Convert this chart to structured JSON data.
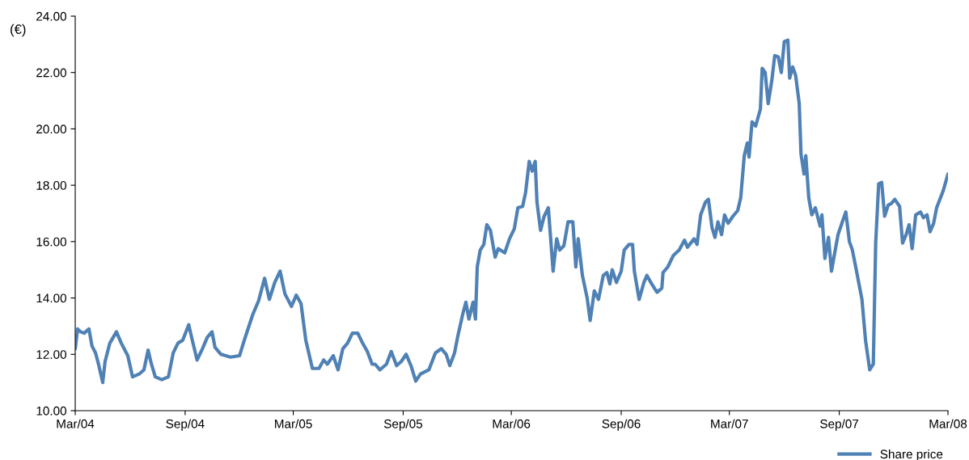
{
  "chart_data": {
    "type": "line",
    "ylabel": "(€)",
    "legend": "bottom right",
    "grid": false,
    "marker": "none",
    "line_style": "solid",
    "xlim": [
      "2004-03-01",
      "2008-03-01"
    ],
    "xticks": [
      {
        "value": "2004-03-01",
        "label": "Mar/04"
      },
      {
        "value": "2004-09-01",
        "label": "Sep/04"
      },
      {
        "value": "2005-03-01",
        "label": "Mar/05"
      },
      {
        "value": "2005-09-01",
        "label": "Sep/05"
      },
      {
        "value": "2006-03-01",
        "label": "Mar/06"
      },
      {
        "value": "2006-09-01",
        "label": "Sep/06"
      },
      {
        "value": "2007-03-01",
        "label": "Mar/07"
      },
      {
        "value": "2007-09-01",
        "label": "Sep/07"
      },
      {
        "value": "2008-03-01",
        "label": "Mar/08"
      }
    ],
    "ylim": [
      10,
      24
    ],
    "yticks": [
      {
        "value": 10,
        "label": "10.00"
      },
      {
        "value": 12,
        "label": "12.00"
      },
      {
        "value": 14,
        "label": "14.00"
      },
      {
        "value": 16,
        "label": "16.00"
      },
      {
        "value": 18,
        "label": "18.00"
      },
      {
        "value": 20,
        "label": "20.00"
      },
      {
        "value": 22,
        "label": "22.00"
      },
      {
        "value": 24,
        "label": "24.00"
      }
    ],
    "x": [
      "2004-03-01",
      "2004-03-05",
      "2004-03-10",
      "2004-03-16",
      "2004-03-24",
      "2004-03-29",
      "2004-04-04",
      "2004-04-09",
      "2004-04-16",
      "2004-04-20",
      "2004-04-28",
      "2004-05-09",
      "2004-05-17",
      "2004-05-28",
      "2004-06-05",
      "2004-06-16",
      "2004-06-24",
      "2004-07-01",
      "2004-07-06",
      "2004-07-13",
      "2004-07-24",
      "2004-08-04",
      "2004-08-12",
      "2004-08-20",
      "2004-08-28",
      "2004-09-07",
      "2004-09-13",
      "2004-09-21",
      "2004-09-30",
      "2004-10-08",
      "2004-10-16",
      "2004-10-21",
      "2004-10-31",
      "2004-11-16",
      "2004-12-01",
      "2004-12-09",
      "2004-12-23",
      "2005-01-02",
      "2005-01-12",
      "2005-01-20",
      "2005-01-29",
      "2005-02-07",
      "2005-02-15",
      "2005-02-26",
      "2005-03-06",
      "2005-03-14",
      "2005-03-22",
      "2005-04-02",
      "2005-04-13",
      "2005-04-21",
      "2005-04-27",
      "2005-05-07",
      "2005-05-15",
      "2005-05-23",
      "2005-05-31",
      "2005-06-08",
      "2005-06-17",
      "2005-06-25",
      "2005-07-03",
      "2005-07-11",
      "2005-07-16",
      "2005-07-24",
      "2005-08-04",
      "2005-08-12",
      "2005-08-21",
      "2005-08-29",
      "2005-09-06",
      "2005-09-14",
      "2005-09-22",
      "2005-09-30",
      "2005-10-14",
      "2005-10-25",
      "2005-11-04",
      "2005-11-12",
      "2005-11-18",
      "2005-11-26",
      "2005-12-01",
      "2005-12-10",
      "2005-12-15",
      "2005-12-20",
      "2005-12-27",
      "2005-12-31",
      "2006-01-03",
      "2006-01-08",
      "2006-01-14",
      "2006-01-19",
      "2006-01-25",
      "2006-02-02",
      "2006-02-07",
      "2006-02-18",
      "2006-02-26",
      "2006-03-06",
      "2006-03-12",
      "2006-03-20",
      "2006-03-25",
      "2006-03-31",
      "2006-04-05",
      "2006-04-10",
      "2006-04-13",
      "2006-04-19",
      "2006-04-25",
      "2006-05-02",
      "2006-05-10",
      "2006-05-16",
      "2006-05-21",
      "2006-05-28",
      "2006-06-04",
      "2006-06-12",
      "2006-06-17",
      "2006-06-21",
      "2006-06-28",
      "2006-07-06",
      "2006-07-11",
      "2006-07-18",
      "2006-07-25",
      "2006-08-02",
      "2006-08-08",
      "2006-08-13",
      "2006-08-17",
      "2006-08-24",
      "2006-09-01",
      "2006-09-06",
      "2006-09-14",
      "2006-09-20",
      "2006-09-23",
      "2006-10-01",
      "2006-10-09",
      "2006-10-14",
      "2006-10-22",
      "2006-10-31",
      "2006-11-08",
      "2006-11-10",
      "2006-11-18",
      "2006-11-27",
      "2006-12-07",
      "2006-12-16",
      "2006-12-21",
      "2007-01-01",
      "2007-01-06",
      "2007-01-12",
      "2007-01-20",
      "2007-01-25",
      "2007-01-31",
      "2007-02-05",
      "2007-02-10",
      "2007-02-16",
      "2007-02-21",
      "2007-02-27",
      "2007-03-07",
      "2007-03-15",
      "2007-03-20",
      "2007-03-26",
      "2007-03-31",
      "2007-04-03",
      "2007-04-08",
      "2007-04-14",
      "2007-04-22",
      "2007-04-25",
      "2007-04-30",
      "2007-05-05",
      "2007-05-11",
      "2007-05-16",
      "2007-05-22",
      "2007-05-27",
      "2007-06-01",
      "2007-06-07",
      "2007-06-10",
      "2007-06-15",
      "2007-06-20",
      "2007-06-26",
      "2007-06-29",
      "2007-07-04",
      "2007-07-07",
      "2007-07-12",
      "2007-07-17",
      "2007-07-23",
      "2007-07-31",
      "2007-08-03",
      "2007-08-08",
      "2007-08-14",
      "2007-08-19",
      "2007-08-24",
      "2007-08-30",
      "2007-09-07",
      "2007-09-12",
      "2007-09-18",
      "2007-09-23",
      "2007-09-29",
      "2007-10-04",
      "2007-10-09",
      "2007-10-15",
      "2007-10-22",
      "2007-10-28",
      "2007-11-01",
      "2007-11-06",
      "2007-11-11",
      "2007-11-16",
      "2007-11-22",
      "2007-11-27",
      "2007-12-03",
      "2007-12-11",
      "2007-12-16",
      "2007-12-22",
      "2007-12-27",
      "2008-01-01",
      "2008-01-07",
      "2008-01-15",
      "2008-01-20",
      "2008-01-26",
      "2008-01-31",
      "2008-02-06",
      "2008-02-11",
      "2008-02-22",
      "2008-03-01"
    ],
    "series": [
      {
        "name": "Share price",
        "color": "#4f81b5",
        "values": [
          12.2,
          12.9,
          12.8,
          12.75,
          12.9,
          12.3,
          12.05,
          11.65,
          11.0,
          11.75,
          12.4,
          12.8,
          12.4,
          11.95,
          11.2,
          11.3,
          11.45,
          12.15,
          11.7,
          11.2,
          11.1,
          11.2,
          12.05,
          12.4,
          12.5,
          13.05,
          12.5,
          11.8,
          12.2,
          12.6,
          12.8,
          12.25,
          12.0,
          11.9,
          11.95,
          12.5,
          13.4,
          13.9,
          14.7,
          13.95,
          14.55,
          14.95,
          14.15,
          13.7,
          14.1,
          13.8,
          12.5,
          11.5,
          11.5,
          11.8,
          11.65,
          11.95,
          11.45,
          12.2,
          12.4,
          12.75,
          12.75,
          12.4,
          12.1,
          11.65,
          11.65,
          11.45,
          11.65,
          12.1,
          11.6,
          11.75,
          12.0,
          11.6,
          11.05,
          11.3,
          11.45,
          12.05,
          12.2,
          12.0,
          11.6,
          12.05,
          12.6,
          13.45,
          13.85,
          13.25,
          13.85,
          13.25,
          15.1,
          15.7,
          15.9,
          16.6,
          16.4,
          15.45,
          15.75,
          15.6,
          16.1,
          16.45,
          17.2,
          17.25,
          17.75,
          18.85,
          18.5,
          18.85,
          17.4,
          16.4,
          16.9,
          17.2,
          14.95,
          16.1,
          15.7,
          15.85,
          16.7,
          16.7,
          15.1,
          16.1,
          14.8,
          14.0,
          13.2,
          14.25,
          13.95,
          14.8,
          14.9,
          14.5,
          15.0,
          14.55,
          14.95,
          15.7,
          15.9,
          15.9,
          14.95,
          13.95,
          14.55,
          14.8,
          14.5,
          14.2,
          14.35,
          14.9,
          15.1,
          15.5,
          15.7,
          16.05,
          15.8,
          16.1,
          15.9,
          16.95,
          17.4,
          17.5,
          16.5,
          16.15,
          16.7,
          16.25,
          16.95,
          16.65,
          16.9,
          17.1,
          17.55,
          19.05,
          19.5,
          19.0,
          20.25,
          20.1,
          20.7,
          22.15,
          22.0,
          20.9,
          21.7,
          22.6,
          22.55,
          22.0,
          23.1,
          23.15,
          21.8,
          22.2,
          21.9,
          20.9,
          19.1,
          18.4,
          19.05,
          17.55,
          16.95,
          17.2,
          16.55,
          16.95,
          15.4,
          16.15,
          14.95,
          15.55,
          16.25,
          16.75,
          17.05,
          16.0,
          15.7,
          15.05,
          14.5,
          13.95,
          12.5,
          11.45,
          11.65,
          15.95,
          18.05,
          18.1,
          16.9,
          17.3,
          17.35,
          17.5,
          17.25,
          15.95,
          16.25,
          16.6,
          15.75,
          16.95,
          17.05,
          16.85,
          16.95,
          16.35,
          16.65,
          17.2,
          17.8,
          18.4
        ]
      }
    ]
  }
}
